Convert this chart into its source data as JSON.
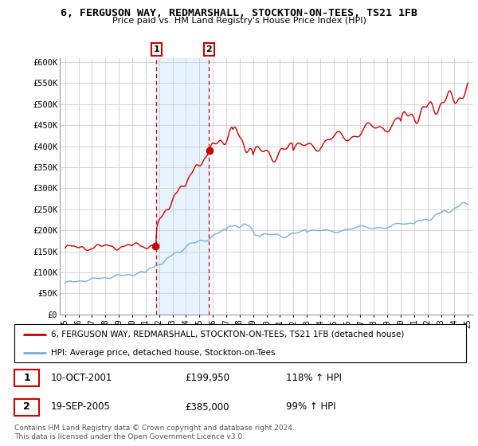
{
  "title": "6, FERGUSON WAY, REDMARSHALL, STOCKTON-ON-TEES, TS21 1FB",
  "subtitle": "Price paid vs. HM Land Registry's House Price Index (HPI)",
  "ylabel_ticks": [
    "£0",
    "£50K",
    "£100K",
    "£150K",
    "£200K",
    "£250K",
    "£300K",
    "£350K",
    "£400K",
    "£450K",
    "£500K",
    "£550K",
    "£600K"
  ],
  "ytick_values": [
    0,
    50000,
    100000,
    150000,
    200000,
    250000,
    300000,
    350000,
    400000,
    450000,
    500000,
    550000,
    600000
  ],
  "x_start_year": 1995,
  "x_end_year": 2025,
  "sale1_year": 2001.79,
  "sale1_price": 199950,
  "sale2_year": 2005.72,
  "sale2_price": 385000,
  "sale1_label": "1",
  "sale2_label": "2",
  "sale1_date": "10-OCT-2001",
  "sale2_date": "19-SEP-2005",
  "sale1_pct": "118% ↑ HPI",
  "sale2_pct": "99% ↑ HPI",
  "hpi_line_color": "#7ab0d4",
  "price_line_color": "#cc0000",
  "marker_line_color": "#cc0000",
  "bg_shade_color": "#ddeeff",
  "grid_color": "#cccccc",
  "legend_label_red": "6, FERGUSON WAY, REDMARSHALL, STOCKTON-ON-TEES, TS21 1FB (detached house)",
  "legend_label_blue": "HPI: Average price, detached house, Stockton-on-Tees",
  "footer": "Contains HM Land Registry data © Crown copyright and database right 2024.\nThis data is licensed under the Open Government Licence v3.0."
}
